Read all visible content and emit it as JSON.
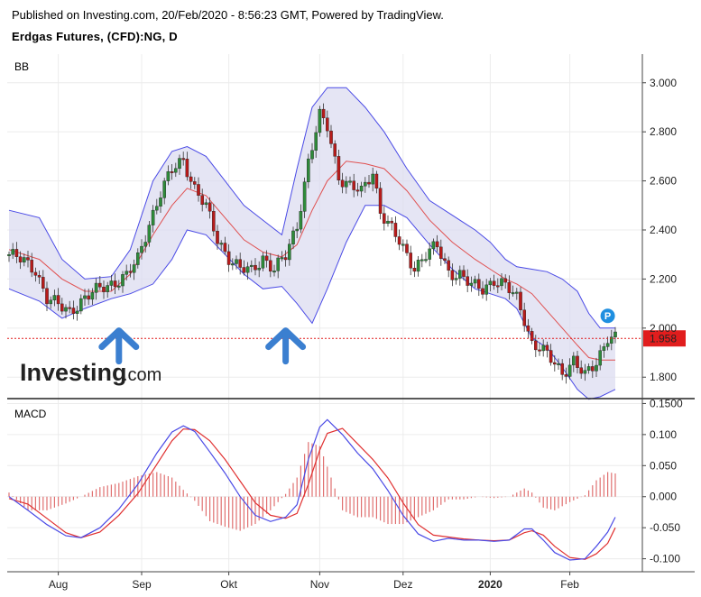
{
  "header": {
    "published": "Published on Investing.com, 20/Feb/2020 - 8:56:23 GMT, Powered by TradingView.",
    "instrument": "Erdgas Futures, (CFD):NG, D"
  },
  "logo": {
    "main": "Investing",
    "suffix": ".com"
  },
  "colors": {
    "up": "#2e8b3a",
    "down": "#b81b1b",
    "band_fill": "#dcdcf0",
    "band_line": "#4a4ae6",
    "basis": "#e05050",
    "macd": "#4a4ae6",
    "signal": "#e03030",
    "price_badge": "#e11d1d",
    "marker": "#1f8fe0"
  },
  "chart_data": [
    {
      "type": "candlestick",
      "panel_label": "BB",
      "y_ticks": [
        "3.000",
        "2.800",
        "2.600",
        "2.400",
        "2.200",
        "2.000",
        "1.800"
      ],
      "y_tick_values": [
        3.0,
        2.8,
        2.6,
        2.4,
        2.2,
        2.0,
        1.8
      ],
      "ylim": [
        1.72,
        3.08
      ],
      "x_labels": [
        "Aug",
        "Sep",
        "Okt",
        "Nov",
        "Dez",
        "2020",
        "Feb"
      ],
      "x_label_bars": [
        13,
        35,
        58,
        82,
        104,
        127,
        148
      ],
      "last_price": "1.958",
      "last_price_value": 1.958,
      "markers": [
        {
          "type": "arrow-up",
          "bar": 29,
          "value": 1.92
        },
        {
          "type": "arrow-up",
          "bar": 73,
          "value": 1.92
        },
        {
          "type": "pin",
          "label": "P",
          "bar": 158,
          "value": 2.05
        }
      ],
      "price_anchors": [
        [
          0,
          2.3
        ],
        [
          4,
          2.27
        ],
        [
          7,
          2.24
        ],
        [
          10,
          2.12
        ],
        [
          13,
          2.09
        ],
        [
          16,
          2.07
        ],
        [
          19,
          2.11
        ],
        [
          22,
          2.14
        ],
        [
          25,
          2.17
        ],
        [
          28,
          2.19
        ],
        [
          31,
          2.21
        ],
        [
          34,
          2.28
        ],
        [
          37,
          2.43
        ],
        [
          40,
          2.55
        ],
        [
          43,
          2.64
        ],
        [
          46,
          2.69
        ],
        [
          49,
          2.57
        ],
        [
          52,
          2.49
        ],
        [
          55,
          2.36
        ],
        [
          58,
          2.29
        ],
        [
          61,
          2.24
        ],
        [
          64,
          2.23
        ],
        [
          67,
          2.29
        ],
        [
          70,
          2.24
        ],
        [
          73,
          2.29
        ],
        [
          76,
          2.42
        ],
        [
          79,
          2.68
        ],
        [
          82,
          2.86
        ],
        [
          84,
          2.82
        ],
        [
          87,
          2.62
        ],
        [
          90,
          2.58
        ],
        [
          93,
          2.55
        ],
        [
          96,
          2.64
        ],
        [
          98,
          2.48
        ],
        [
          101,
          2.4
        ],
        [
          104,
          2.32
        ],
        [
          107,
          2.25
        ],
        [
          110,
          2.3
        ],
        [
          113,
          2.33
        ],
        [
          116,
          2.23
        ],
        [
          119,
          2.22
        ],
        [
          122,
          2.17
        ],
        [
          125,
          2.16
        ],
        [
          128,
          2.2
        ],
        [
          131,
          2.17
        ],
        [
          134,
          2.12
        ],
        [
          136,
          2.04
        ],
        [
          138,
          1.94
        ],
        [
          140,
          1.92
        ],
        [
          143,
          1.87
        ],
        [
          146,
          1.82
        ],
        [
          149,
          1.87
        ],
        [
          152,
          1.8
        ],
        [
          155,
          1.86
        ],
        [
          158,
          1.97
        ],
        [
          160,
          1.96
        ]
      ],
      "upper_band": [
        [
          0,
          2.48
        ],
        [
          8,
          2.45
        ],
        [
          14,
          2.28
        ],
        [
          20,
          2.2
        ],
        [
          27,
          2.21
        ],
        [
          32,
          2.32
        ],
        [
          38,
          2.6
        ],
        [
          43,
          2.72
        ],
        [
          47,
          2.74
        ],
        [
          52,
          2.7
        ],
        [
          57,
          2.6
        ],
        [
          62,
          2.5
        ],
        [
          67,
          2.44
        ],
        [
          72,
          2.38
        ],
        [
          76,
          2.65
        ],
        [
          80,
          2.9
        ],
        [
          84,
          2.98
        ],
        [
          89,
          2.98
        ],
        [
          94,
          2.9
        ],
        [
          99,
          2.8
        ],
        [
          105,
          2.65
        ],
        [
          111,
          2.52
        ],
        [
          117,
          2.46
        ],
        [
          123,
          2.4
        ],
        [
          127,
          2.35
        ],
        [
          131,
          2.28
        ],
        [
          134,
          2.25
        ],
        [
          138,
          2.24
        ],
        [
          142,
          2.23
        ],
        [
          146,
          2.2
        ],
        [
          150,
          2.15
        ],
        [
          153,
          2.06
        ],
        [
          156,
          2.0
        ],
        [
          160,
          2.0
        ]
      ],
      "basis_line": [
        [
          0,
          2.32
        ],
        [
          8,
          2.28
        ],
        [
          14,
          2.2
        ],
        [
          20,
          2.15
        ],
        [
          27,
          2.15
        ],
        [
          32,
          2.22
        ],
        [
          38,
          2.38
        ],
        [
          43,
          2.5
        ],
        [
          47,
          2.57
        ],
        [
          52,
          2.54
        ],
        [
          57,
          2.45
        ],
        [
          62,
          2.36
        ],
        [
          67,
          2.31
        ],
        [
          72,
          2.29
        ],
        [
          76,
          2.34
        ],
        [
          80,
          2.48
        ],
        [
          84,
          2.6
        ],
        [
          89,
          2.68
        ],
        [
          94,
          2.67
        ],
        [
          99,
          2.65
        ],
        [
          105,
          2.56
        ],
        [
          111,
          2.44
        ],
        [
          117,
          2.35
        ],
        [
          123,
          2.28
        ],
        [
          127,
          2.24
        ],
        [
          131,
          2.2
        ],
        [
          134,
          2.18
        ],
        [
          138,
          2.14
        ],
        [
          142,
          2.07
        ],
        [
          146,
          2.0
        ],
        [
          150,
          1.93
        ],
        [
          153,
          1.88
        ],
        [
          156,
          1.87
        ],
        [
          160,
          1.87
        ]
      ],
      "lower_band": [
        [
          0,
          2.16
        ],
        [
          8,
          2.11
        ],
        [
          14,
          2.04
        ],
        [
          20,
          2.08
        ],
        [
          27,
          2.12
        ],
        [
          32,
          2.14
        ],
        [
          38,
          2.18
        ],
        [
          43,
          2.28
        ],
        [
          47,
          2.4
        ],
        [
          52,
          2.38
        ],
        [
          57,
          2.3
        ],
        [
          62,
          2.22
        ],
        [
          67,
          2.16
        ],
        [
          72,
          2.17
        ],
        [
          76,
          2.1
        ],
        [
          80,
          2.02
        ],
        [
          84,
          2.16
        ],
        [
          89,
          2.35
        ],
        [
          94,
          2.5
        ],
        [
          99,
          2.5
        ],
        [
          105,
          2.45
        ],
        [
          111,
          2.34
        ],
        [
          117,
          2.24
        ],
        [
          123,
          2.16
        ],
        [
          127,
          2.14
        ],
        [
          131,
          2.12
        ],
        [
          134,
          2.08
        ],
        [
          138,
          1.96
        ],
        [
          142,
          1.92
        ],
        [
          146,
          1.84
        ],
        [
          150,
          1.75
        ],
        [
          153,
          1.71
        ],
        [
          156,
          1.72
        ],
        [
          160,
          1.75
        ]
      ]
    },
    {
      "type": "line",
      "panel_label": "MACD",
      "y_ticks": [
        "0.1500",
        "0.100",
        "0.050",
        "0.000",
        "-0.050",
        "-0.100"
      ],
      "y_tick_values": [
        0.15,
        0.1,
        0.05,
        0.0,
        -0.05,
        -0.1
      ],
      "ylim": [
        -0.118,
        0.155
      ],
      "series": [
        {
          "role": "macd",
          "points": [
            [
              0,
              0.0
            ],
            [
              5,
              -0.022
            ],
            [
              10,
              -0.045
            ],
            [
              15,
              -0.063
            ],
            [
              19,
              -0.066
            ],
            [
              24,
              -0.05
            ],
            [
              29,
              -0.02
            ],
            [
              34,
              0.02
            ],
            [
              39,
              0.07
            ],
            [
              43,
              0.104
            ],
            [
              46,
              0.114
            ],
            [
              49,
              0.105
            ],
            [
              53,
              0.072
            ],
            [
              57,
              0.038
            ],
            [
              61,
              0.0
            ],
            [
              65,
              -0.03
            ],
            [
              69,
              -0.04
            ],
            [
              73,
              -0.033
            ],
            [
              76,
              -0.013
            ],
            [
              79,
              0.06
            ],
            [
              82,
              0.112
            ],
            [
              84,
              0.124
            ],
            [
              88,
              0.1
            ],
            [
              92,
              0.07
            ],
            [
              96,
              0.045
            ],
            [
              100,
              0.01
            ],
            [
              104,
              -0.03
            ],
            [
              108,
              -0.06
            ],
            [
              112,
              -0.072
            ],
            [
              116,
              -0.067
            ],
            [
              120,
              -0.07
            ],
            [
              124,
              -0.07
            ],
            [
              128,
              -0.072
            ],
            [
              132,
              -0.07
            ],
            [
              136,
              -0.052
            ],
            [
              138,
              -0.052
            ],
            [
              141,
              -0.07
            ],
            [
              144,
              -0.09
            ],
            [
              148,
              -0.102
            ],
            [
              152,
              -0.1
            ],
            [
              155,
              -0.08
            ],
            [
              158,
              -0.057
            ],
            [
              160,
              -0.033
            ]
          ]
        },
        {
          "role": "signal",
          "points": [
            [
              0,
              -0.003
            ],
            [
              5,
              -0.012
            ],
            [
              10,
              -0.035
            ],
            [
              15,
              -0.058
            ],
            [
              19,
              -0.066
            ],
            [
              24,
              -0.057
            ],
            [
              29,
              -0.03
            ],
            [
              34,
              0.005
            ],
            [
              39,
              0.052
            ],
            [
              43,
              0.09
            ],
            [
              46,
              0.109
            ],
            [
              49,
              0.108
            ],
            [
              53,
              0.09
            ],
            [
              57,
              0.06
            ],
            [
              61,
              0.025
            ],
            [
              65,
              -0.01
            ],
            [
              69,
              -0.03
            ],
            [
              73,
              -0.035
            ],
            [
              76,
              -0.027
            ],
            [
              79,
              0.02
            ],
            [
              82,
              0.075
            ],
            [
              84,
              0.102
            ],
            [
              88,
              0.11
            ],
            [
              92,
              0.085
            ],
            [
              96,
              0.06
            ],
            [
              100,
              0.03
            ],
            [
              104,
              -0.01
            ],
            [
              108,
              -0.045
            ],
            [
              112,
              -0.062
            ],
            [
              116,
              -0.065
            ],
            [
              120,
              -0.068
            ],
            [
              124,
              -0.07
            ],
            [
              128,
              -0.071
            ],
            [
              132,
              -0.07
            ],
            [
              136,
              -0.058
            ],
            [
              138,
              -0.055
            ],
            [
              141,
              -0.062
            ],
            [
              144,
              -0.08
            ],
            [
              148,
              -0.098
            ],
            [
              152,
              -0.101
            ],
            [
              155,
              -0.092
            ],
            [
              158,
              -0.075
            ],
            [
              160,
              -0.05
            ]
          ]
        }
      ]
    }
  ]
}
